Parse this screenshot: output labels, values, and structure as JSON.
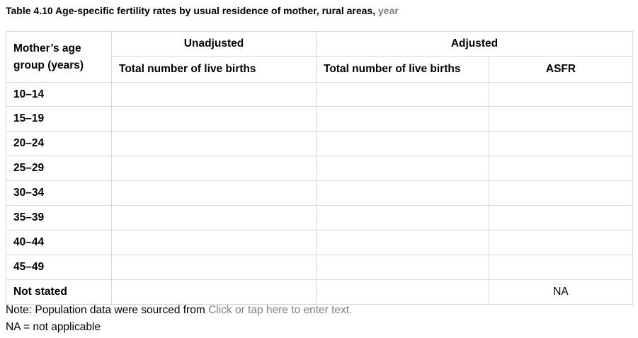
{
  "title": {
    "text": "Table 4.10 Age-specific fertility rates by usual residence of mother, rural areas,",
    "placeholder": "year"
  },
  "table": {
    "header": {
      "age_group": "Mother’s age group (years)",
      "unadjusted": "Unadjusted",
      "adjusted": "Adjusted",
      "unadjusted_births": "Total number of live births",
      "adjusted_births": "Total number of live births",
      "asfr": "ASFR"
    },
    "rows": [
      {
        "age": "10–14",
        "unadjusted": "",
        "adjusted": "",
        "asfr": ""
      },
      {
        "age": "15–19",
        "unadjusted": "",
        "adjusted": "",
        "asfr": ""
      },
      {
        "age": "20–24",
        "unadjusted": "",
        "adjusted": "",
        "asfr": ""
      },
      {
        "age": "25–29",
        "unadjusted": "",
        "adjusted": "",
        "asfr": ""
      },
      {
        "age": "30–34",
        "unadjusted": "",
        "adjusted": "",
        "asfr": ""
      },
      {
        "age": "35–39",
        "unadjusted": "",
        "adjusted": "",
        "asfr": ""
      },
      {
        "age": "40–44",
        "unadjusted": "",
        "adjusted": "",
        "asfr": ""
      },
      {
        "age": "45–49",
        "unadjusted": "",
        "adjusted": "",
        "asfr": ""
      },
      {
        "age": "Not stated",
        "unadjusted": "",
        "adjusted": "",
        "asfr": "NA"
      }
    ]
  },
  "notes": {
    "source_prefix": "Note: Population data were sourced from",
    "source_placeholder": "Click or tap here to enter text.",
    "na": "NA = not applicable"
  }
}
